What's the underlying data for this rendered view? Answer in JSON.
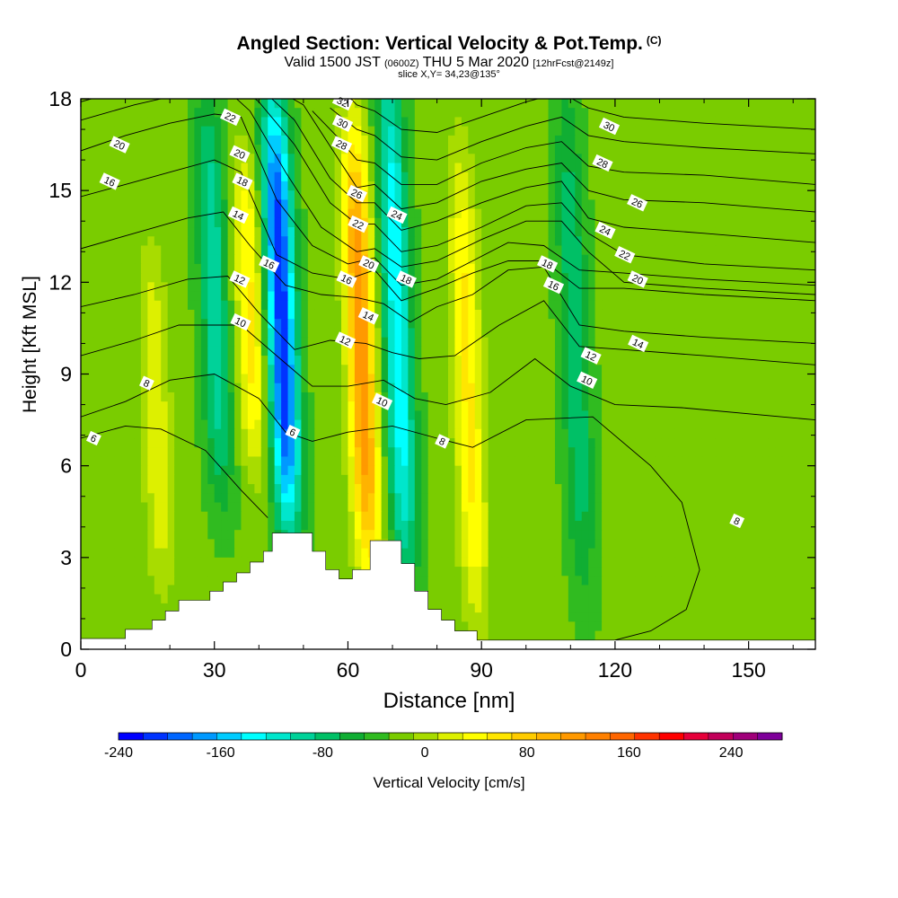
{
  "title": {
    "main": "Angled Section: Vertical Velocity & Pot.Temp.",
    "unit": "(C)",
    "line2_a": "Valid 1500 JST",
    "line2_b": "(0600Z)",
    "line2_c": "THU 5 Mar 2020",
    "line2_d": "[12hrFcst@2149z]",
    "line3": "slice X,Y= 34,23@135°"
  },
  "chart_data": {
    "type": "heatmap",
    "xlabel": "Distance [nm]",
    "ylabel": "Height [Kft MSL]",
    "xlim": [
      0,
      165
    ],
    "ylim": [
      0,
      18
    ],
    "xticks": [
      0,
      30,
      60,
      90,
      120,
      150
    ],
    "yticks": [
      0,
      3,
      6,
      9,
      12,
      15,
      18
    ],
    "colorbar": {
      "label": "Vertical Velocity [cm/s]",
      "range": [
        -240,
        280
      ],
      "step": 20,
      "ticks": [
        -240,
        -160,
        -80,
        0,
        80,
        160,
        240
      ],
      "colors": [
        "#0000ff",
        "#0033ff",
        "#0066ff",
        "#0099ff",
        "#00ccff",
        "#00ffff",
        "#00e6cc",
        "#00d299",
        "#00c066",
        "#10ae33",
        "#30bb20",
        "#7acc00",
        "#a8dc00",
        "#ddf000",
        "#ffff00",
        "#ffe600",
        "#ffcc00",
        "#ffb300",
        "#ff9900",
        "#ff8000",
        "#ff6600",
        "#ff3300",
        "#ff0000",
        "#e6003a",
        "#c2005a",
        "#a0007a",
        "#7e009a"
      ]
    },
    "vertical_velocity_features": [
      {
        "kind": "downdraft",
        "x": 45,
        "y_range": [
          5,
          17
        ],
        "peak_cm_s": -200
      },
      {
        "kind": "downdraft",
        "x": 30,
        "y_range": [
          6,
          17
        ],
        "peak_cm_s": -80
      },
      {
        "kind": "updraft",
        "x": 63,
        "y_range": [
          3.5,
          16
        ],
        "peak_cm_s": 150
      },
      {
        "kind": "downdraft",
        "x": 71,
        "y_range": [
          3.5,
          18
        ],
        "peak_cm_s": -120
      },
      {
        "kind": "updraft",
        "x": 87,
        "y_range": [
          2,
          15
        ],
        "peak_cm_s": 80
      },
      {
        "kind": "downdraft",
        "x": 111,
        "y_range": [
          3,
          17
        ],
        "peak_cm_s": -60
      },
      {
        "kind": "updraft",
        "x": 38,
        "y_range": [
          7,
          15
        ],
        "peak_cm_s": 80
      },
      {
        "kind": "updraft",
        "x": 17,
        "y_range": [
          3,
          12
        ],
        "peak_cm_s": 50
      }
    ],
    "terrain_kft": [
      [
        0,
        0.35
      ],
      [
        10,
        0.35
      ],
      [
        10,
        0.65
      ],
      [
        16,
        0.65
      ],
      [
        16,
        0.95
      ],
      [
        19,
        0.95
      ],
      [
        19,
        1.25
      ],
      [
        22,
        1.25
      ],
      [
        22,
        1.6
      ],
      [
        29,
        1.6
      ],
      [
        29,
        1.9
      ],
      [
        32,
        1.9
      ],
      [
        32,
        2.2
      ],
      [
        35,
        2.2
      ],
      [
        35,
        2.5
      ],
      [
        38,
        2.5
      ],
      [
        38,
        2.85
      ],
      [
        41,
        2.85
      ],
      [
        41,
        3.2
      ],
      [
        43,
        3.2
      ],
      [
        43,
        3.8
      ],
      [
        52,
        3.8
      ],
      [
        52,
        3.2
      ],
      [
        55,
        3.2
      ],
      [
        55,
        2.6
      ],
      [
        58,
        2.6
      ],
      [
        58,
        2.3
      ],
      [
        61,
        2.3
      ],
      [
        61,
        2.6
      ],
      [
        65,
        2.6
      ],
      [
        65,
        3.55
      ],
      [
        72,
        3.55
      ],
      [
        72,
        2.8
      ],
      [
        75,
        2.8
      ],
      [
        75,
        1.9
      ],
      [
        78,
        1.9
      ],
      [
        78,
        1.3
      ],
      [
        81,
        1.3
      ],
      [
        81,
        0.95
      ],
      [
        84,
        0.95
      ],
      [
        84,
        0.6
      ],
      [
        89,
        0.6
      ],
      [
        89,
        0.3
      ],
      [
        165,
        0.3
      ]
    ],
    "isentropes": [
      {
        "theta": 6,
        "x": [
          0,
          10,
          18,
          28,
          36,
          42
        ],
        "y": [
          6.9,
          7.3,
          7.2,
          6.5,
          5.2,
          4.3
        ]
      },
      {
        "theta": 8,
        "x": [
          0,
          10,
          20,
          30,
          40,
          46,
          52,
          60,
          70,
          80,
          88,
          100,
          115,
          128,
          135,
          139,
          136,
          128,
          120
        ],
        "y": [
          7.6,
          8.1,
          8.8,
          9.0,
          8.2,
          7.1,
          6.8,
          7.1,
          7.3,
          6.9,
          6.6,
          7.5,
          7.6,
          6.0,
          4.8,
          2.6,
          1.3,
          0.6,
          0.3
        ]
      },
      {
        "theta": 10,
        "x": [
          0,
          12,
          22,
          36,
          44,
          52,
          60,
          68,
          75,
          82,
          92,
          102,
          110,
          120,
          135,
          165
        ],
        "y": [
          9.6,
          10.1,
          10.6,
          10.6,
          9.6,
          8.6,
          8.6,
          8.8,
          8.2,
          8.0,
          8.4,
          9.5,
          8.6,
          8.0,
          7.9,
          7.5
        ]
      },
      {
        "theta": 12,
        "x": [
          0,
          12,
          24,
          33,
          40,
          48,
          56,
          64,
          70,
          76,
          84,
          94,
          104,
          112,
          122,
          140,
          165
        ],
        "y": [
          11.2,
          11.6,
          12.1,
          12.2,
          11.0,
          9.8,
          10.1,
          10.0,
          9.7,
          9.5,
          9.6,
          10.6,
          11.4,
          9.9,
          9.8,
          9.6,
          9.3
        ]
      },
      {
        "theta": 14,
        "x": [
          0,
          12,
          24,
          32,
          38,
          46,
          54,
          62,
          68,
          74,
          80,
          88,
          96,
          104,
          112,
          122,
          140,
          165
        ],
        "y": [
          13.1,
          13.6,
          14.1,
          14.3,
          13.2,
          11.9,
          11.6,
          11.5,
          11.3,
          10.7,
          11.2,
          11.6,
          12.4,
          12.5,
          10.6,
          10.4,
          10.2,
          10.0
        ]
      },
      {
        "theta": 16,
        "x": [
          0,
          10,
          20,
          30,
          36,
          44,
          52,
          60,
          66,
          72,
          80,
          88,
          96,
          104,
          112,
          122,
          140,
          165
        ],
        "y": [
          14.8,
          15.2,
          15.6,
          16.0,
          15.6,
          12.9,
          12.3,
          12.1,
          12.4,
          11.4,
          11.8,
          12.3,
          12.7,
          12.7,
          11.8,
          11.8,
          11.6,
          11.4
        ]
      },
      {
        "theta": 18,
        "x": [
          0,
          10,
          20,
          30,
          36,
          44,
          52,
          60,
          66,
          72,
          80,
          88,
          96,
          104,
          112,
          122,
          140,
          165
        ],
        "y": [
          16.3,
          16.8,
          17.2,
          17.5,
          17.4,
          14.7,
          13.2,
          12.6,
          12.8,
          11.9,
          12.1,
          12.7,
          13.3,
          13.2,
          12.4,
          12.3,
          12.1,
          11.9
        ]
      },
      {
        "theta": 20,
        "x": [
          0,
          12,
          24,
          32,
          38,
          46,
          54,
          62,
          66,
          72,
          80,
          90,
          100,
          108,
          114,
          122,
          140,
          165
        ],
        "y": [
          17.3,
          17.8,
          18.2,
          18.4,
          17.6,
          15.6,
          13.8,
          13.0,
          13.1,
          12.5,
          12.7,
          13.4,
          14.0,
          14.0,
          13.0,
          12.0,
          11.8,
          11.6
        ]
      },
      {
        "theta": 22,
        "x": [
          0,
          12,
          24,
          34,
          40,
          48,
          56,
          62,
          66,
          72,
          80,
          90,
          100,
          108,
          114,
          122,
          140,
          165
        ],
        "y": [
          17.9,
          18.4,
          18.6,
          18.6,
          17.9,
          16.5,
          14.6,
          13.9,
          13.9,
          13.0,
          13.2,
          13.8,
          14.5,
          14.6,
          13.6,
          12.9,
          12.6,
          12.4
        ]
      },
      {
        "theta": 24,
        "x": [
          34,
          40,
          48,
          56,
          62,
          66,
          72,
          80,
          90,
          100,
          108,
          114,
          122,
          140,
          165
        ],
        "y": [
          18.6,
          18.4,
          17.3,
          15.4,
          14.6,
          14.6,
          13.7,
          14.0,
          14.6,
          15.1,
          15.3,
          14.1,
          13.8,
          13.6,
          13.3
        ]
      },
      {
        "theta": 26,
        "x": [
          44,
          50,
          58,
          62,
          66,
          72,
          80,
          90,
          100,
          108,
          114,
          122,
          140,
          165
        ],
        "y": [
          18.3,
          17.8,
          16.0,
          15.1,
          15.2,
          14.4,
          14.6,
          15.3,
          15.7,
          15.9,
          15.0,
          14.7,
          14.6,
          14.3
        ]
      },
      {
        "theta": 28,
        "x": [
          52,
          58,
          62,
          66,
          72,
          80,
          90,
          100,
          108,
          114,
          122,
          140,
          165
        ],
        "y": [
          17.6,
          16.7,
          16.0,
          15.9,
          15.2,
          15.2,
          15.9,
          16.4,
          16.6,
          15.8,
          15.6,
          15.5,
          15.2
        ]
      },
      {
        "theta": 30,
        "x": [
          56,
          62,
          66,
          72,
          80,
          90,
          100,
          108,
          114,
          122,
          140,
          165
        ],
        "y": [
          17.7,
          17.0,
          16.8,
          16.1,
          16.0,
          16.6,
          17.1,
          17.4,
          16.8,
          16.6,
          16.4,
          16.2
        ]
      },
      {
        "theta": 32,
        "x": [
          58,
          62,
          66,
          72,
          80,
          90,
          100,
          108,
          114,
          122,
          140,
          165
        ],
        "y": [
          18.4,
          17.8,
          17.6,
          17.0,
          16.9,
          17.4,
          17.9,
          18.2,
          17.7,
          17.4,
          17.2,
          17.0
        ]
      }
    ],
    "contour_labels": [
      {
        "text": "20",
        "x": 8.7,
        "y": 16.5
      },
      {
        "text": "16",
        "x": 6.5,
        "y": 15.3
      },
      {
        "text": "22",
        "x": 33.6,
        "y": 17.4
      },
      {
        "text": "20",
        "x": 35.7,
        "y": 16.2
      },
      {
        "text": "18",
        "x": 36.3,
        "y": 15.3
      },
      {
        "text": "14",
        "x": 35.4,
        "y": 14.2
      },
      {
        "text": "12",
        "x": 35.7,
        "y": 12.1
      },
      {
        "text": "10",
        "x": 35.9,
        "y": 10.7
      },
      {
        "text": "8",
        "x": 14.8,
        "y": 8.7
      },
      {
        "text": "6",
        "x": 2.9,
        "y": 6.9
      },
      {
        "text": "16",
        "x": 42.3,
        "y": 12.6
      },
      {
        "text": "6",
        "x": 47.6,
        "y": 7.1
      },
      {
        "text": "32",
        "x": 58.8,
        "y": 17.9
      },
      {
        "text": "30",
        "x": 58.8,
        "y": 17.2
      },
      {
        "text": "28",
        "x": 58.6,
        "y": 16.5
      },
      {
        "text": "26",
        "x": 62.0,
        "y": 14.9
      },
      {
        "text": "22",
        "x": 62.3,
        "y": 13.9
      },
      {
        "text": "20",
        "x": 64.7,
        "y": 12.6
      },
      {
        "text": "16",
        "x": 59.7,
        "y": 12.1
      },
      {
        "text": "12",
        "x": 59.4,
        "y": 10.1
      },
      {
        "text": "14",
        "x": 64.6,
        "y": 10.9
      },
      {
        "text": "10",
        "x": 67.7,
        "y": 8.1
      },
      {
        "text": "24",
        "x": 71.0,
        "y": 14.2
      },
      {
        "text": "18",
        "x": 73.1,
        "y": 12.1
      },
      {
        "text": "8",
        "x": 81.2,
        "y": 6.8
      },
      {
        "text": "30",
        "x": 118.7,
        "y": 17.1
      },
      {
        "text": "28",
        "x": 117.2,
        "y": 15.9
      },
      {
        "text": "26",
        "x": 125.0,
        "y": 14.6
      },
      {
        "text": "24",
        "x": 117.8,
        "y": 13.7
      },
      {
        "text": "22",
        "x": 122.2,
        "y": 12.9
      },
      {
        "text": "20",
        "x": 125.1,
        "y": 12.1
      },
      {
        "text": "18",
        "x": 104.8,
        "y": 12.6
      },
      {
        "text": "16",
        "x": 106.2,
        "y": 11.9
      },
      {
        "text": "14",
        "x": 125.2,
        "y": 10.0
      },
      {
        "text": "12",
        "x": 114.6,
        "y": 9.6
      },
      {
        "text": "10",
        "x": 113.7,
        "y": 8.8
      },
      {
        "text": "8",
        "x": 147.4,
        "y": 4.2
      }
    ]
  }
}
